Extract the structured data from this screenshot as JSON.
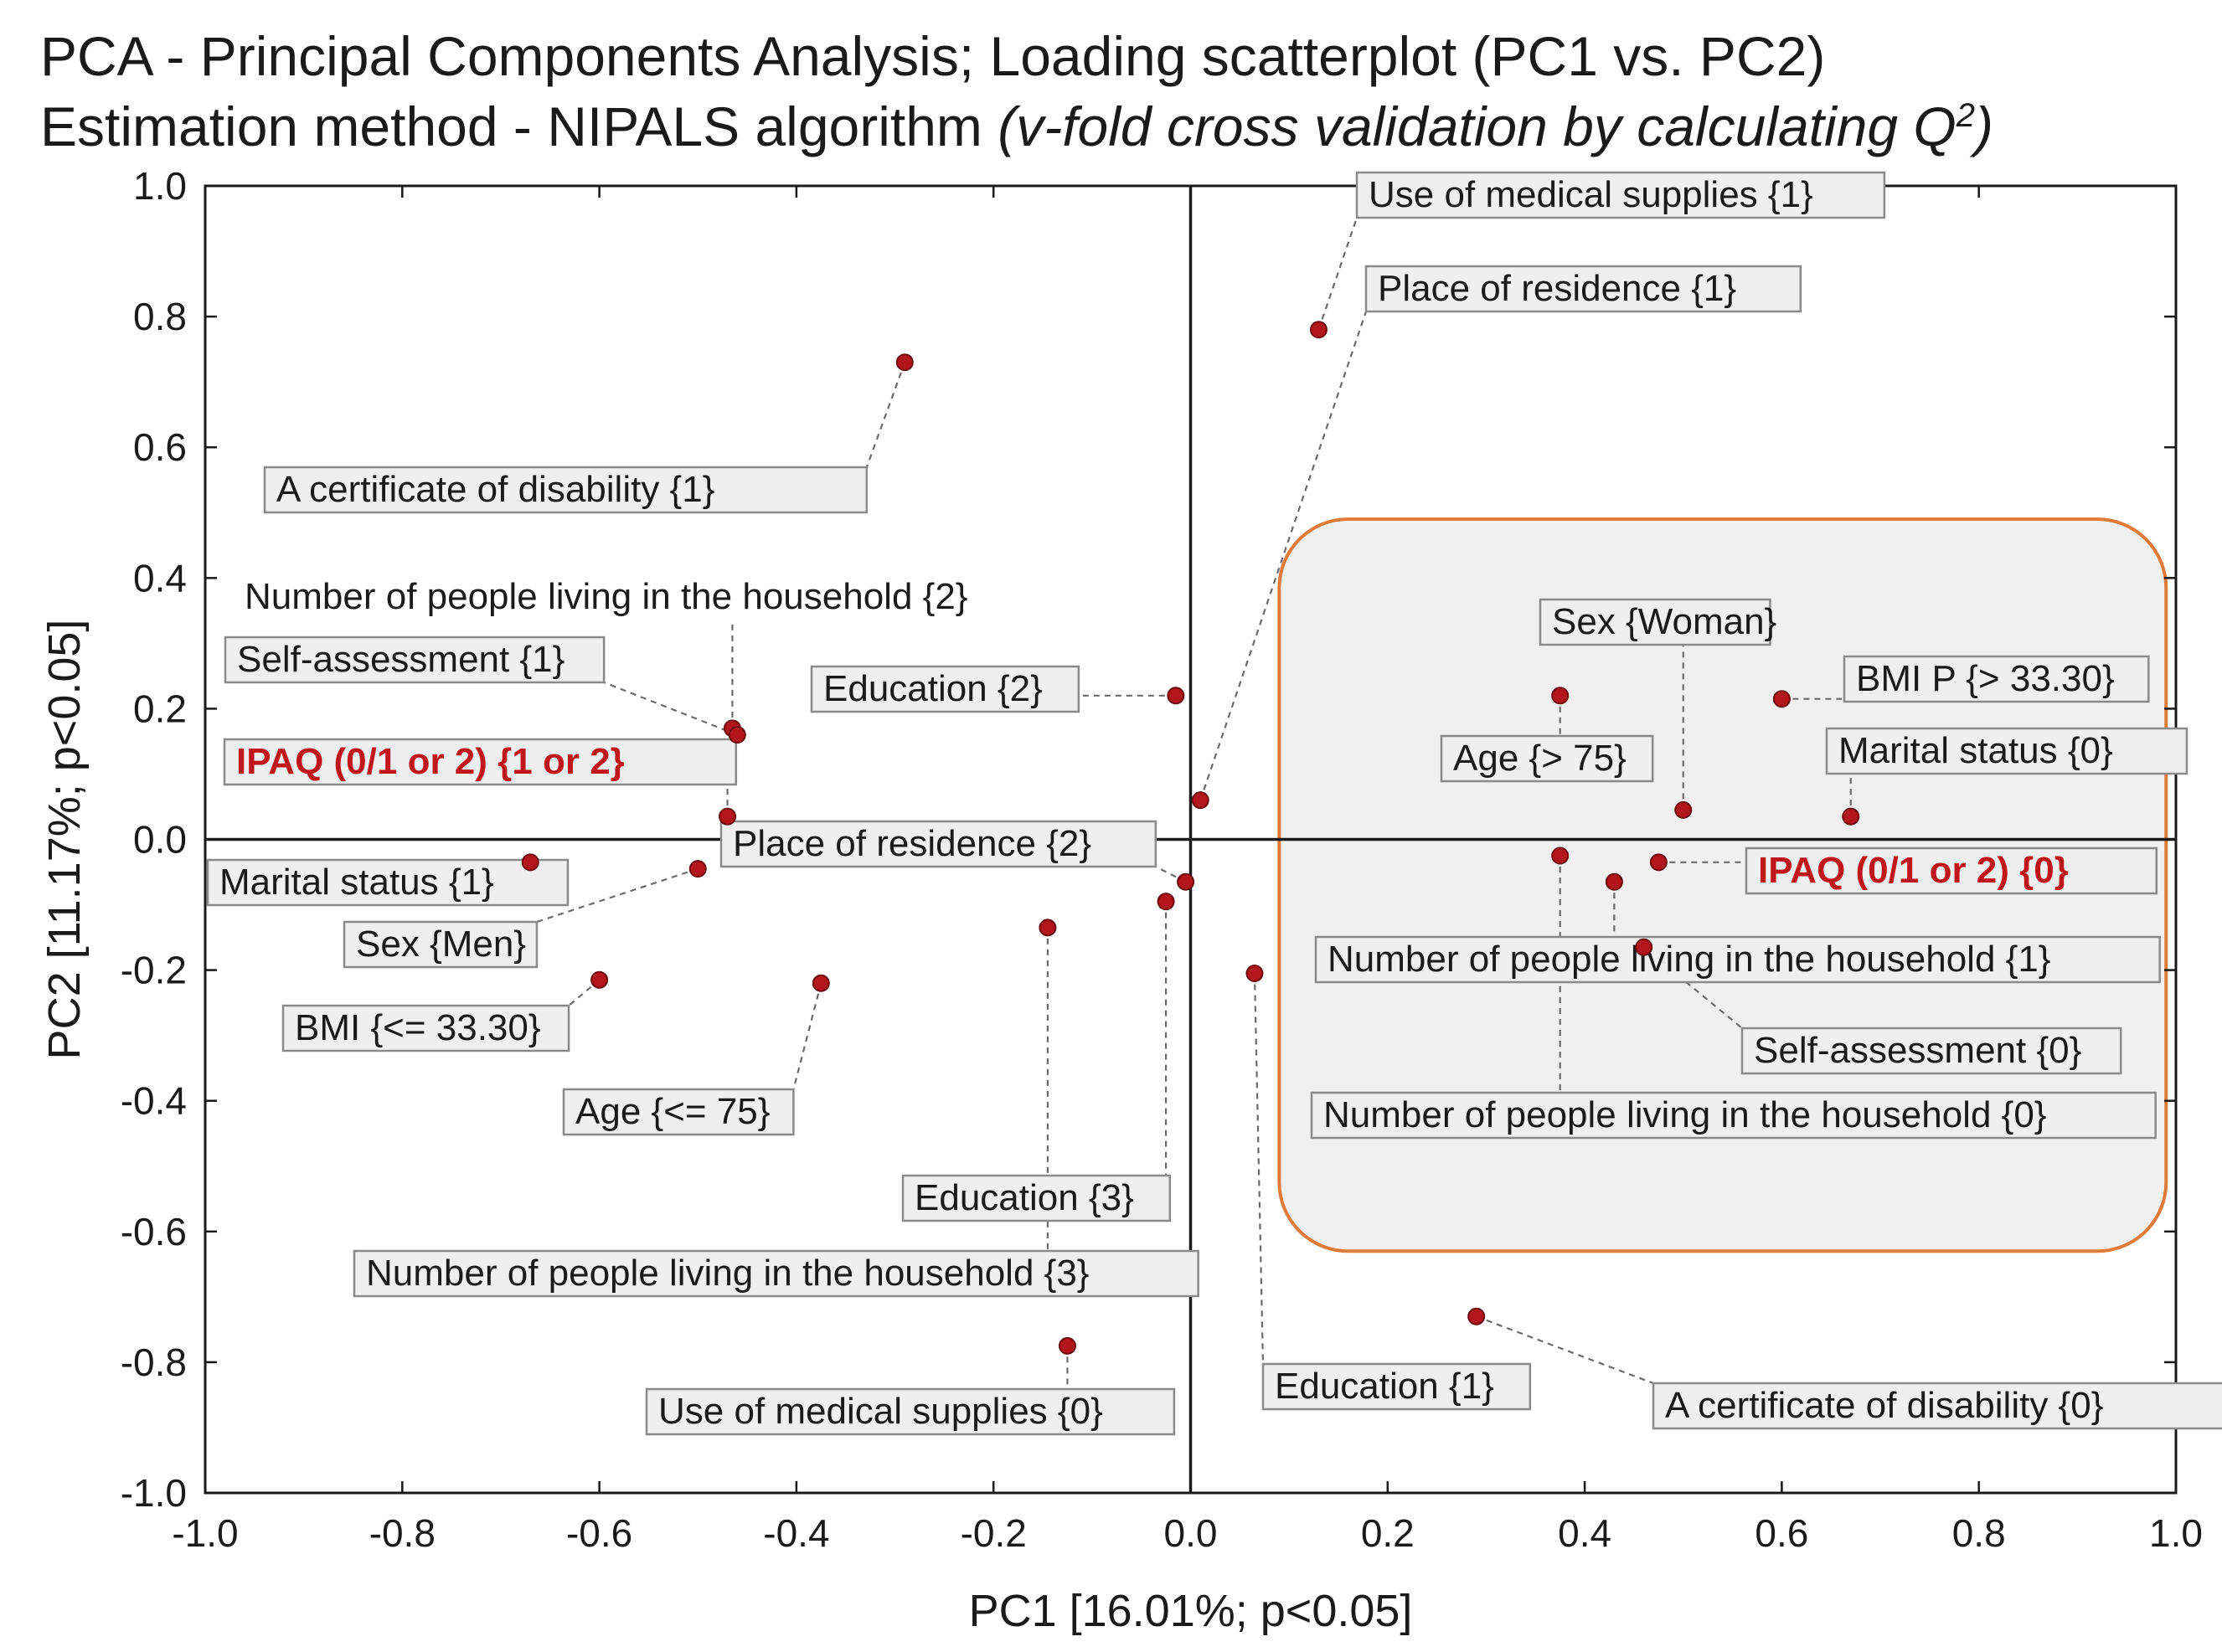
{
  "title_line1": "PCA - Principal Components Analysis; Loading scatterplot (PC1 vs. PC2)",
  "title_line2_prefix": "Estimation method - NIPALS algorithm ",
  "title_line2_italic": "(v-fold cross validation by calculating Q",
  "title_line2_sup": "2",
  "title_line2_suffix": ")",
  "colors": {
    "point": "#b3151c",
    "highlight_box": "#e07b39",
    "highlight_text": "#c0161c"
  },
  "chart_data": {
    "type": "scatter",
    "title": "PCA - Principal Components Analysis; Loading scatterplot (PC1 vs. PC2)",
    "xlabel": "PC1 [16.01%; p<0.05]",
    "ylabel": "PC2 [11.17%; p<0.05]",
    "xlim": [
      -1.0,
      1.0
    ],
    "ylim": [
      -1.0,
      1.0
    ],
    "xticks": [
      "-1.0",
      "-0.8",
      "-0.6",
      "-0.4",
      "-0.2",
      "0.0",
      "0.2",
      "0.4",
      "0.6",
      "0.8",
      "1.0"
    ],
    "yticks": [
      "1.0",
      "0.8",
      "0.6",
      "0.4",
      "0.2",
      "0.0",
      "-0.2",
      "-0.4",
      "-0.6",
      "-0.8",
      "-1.0"
    ],
    "highlight_region": {
      "x": [
        0.09,
        0.99
      ],
      "y": [
        -0.63,
        0.49
      ]
    },
    "points": [
      {
        "label": "Use of medical supplies {1}",
        "x": 0.13,
        "y": 0.78
      },
      {
        "label": "Place of residence {1}",
        "x": 0.01,
        "y": 0.06
      },
      {
        "label": "A certificate of disability {1}",
        "x": -0.29,
        "y": 0.73
      },
      {
        "label": "Number of people living in the household {2}",
        "x": -0.465,
        "y": 0.17,
        "boxed": false
      },
      {
        "label": "Self-assessment {1}",
        "x": -0.46,
        "y": 0.16
      },
      {
        "label": "Education {2}",
        "x": -0.015,
        "y": 0.22
      },
      {
        "label": "IPAQ (0/1 or 2) {1 or 2}",
        "x": -0.47,
        "y": 0.035,
        "highlight": true
      },
      {
        "label": "Marital status {1}",
        "x": -0.67,
        "y": -0.035
      },
      {
        "label": "Sex {Men}",
        "x": -0.5,
        "y": -0.045
      },
      {
        "label": "Place of residence {2}",
        "x": -0.005,
        "y": -0.065
      },
      {
        "label": "BMI {<= 33.30}",
        "x": -0.6,
        "y": -0.215
      },
      {
        "label": "Age {<= 75}",
        "x": -0.375,
        "y": -0.22
      },
      {
        "label": "Education {3}",
        "x": -0.025,
        "y": -0.095
      },
      {
        "label": "Number of people living in the household {3}",
        "x": -0.145,
        "y": -0.135
      },
      {
        "label": "Use of medical supplies {0}",
        "x": -0.125,
        "y": -0.775
      },
      {
        "label": "Education {1}",
        "x": 0.065,
        "y": -0.205
      },
      {
        "label": "A certificate of disability {0}",
        "x": 0.29,
        "y": -0.73
      },
      {
        "label": "Sex {Woman}",
        "x": 0.5,
        "y": 0.045
      },
      {
        "label": "Age {> 75}",
        "x": 0.375,
        "y": 0.22
      },
      {
        "label": "BMI P {> 33.30}",
        "x": 0.6,
        "y": 0.215
      },
      {
        "label": "Marital status {0}",
        "x": 0.67,
        "y": 0.035
      },
      {
        "label": "IPAQ (0/1 or 2) {0}",
        "x": 0.475,
        "y": -0.035,
        "highlight": true
      },
      {
        "label": "Number of people living in the household {1}",
        "x": 0.43,
        "y": -0.065
      },
      {
        "label": "Self-assessment {0}",
        "x": 0.46,
        "y": -0.165
      },
      {
        "label": "Number of people living in the household {0}",
        "x": 0.375,
        "y": -0.025
      }
    ]
  }
}
